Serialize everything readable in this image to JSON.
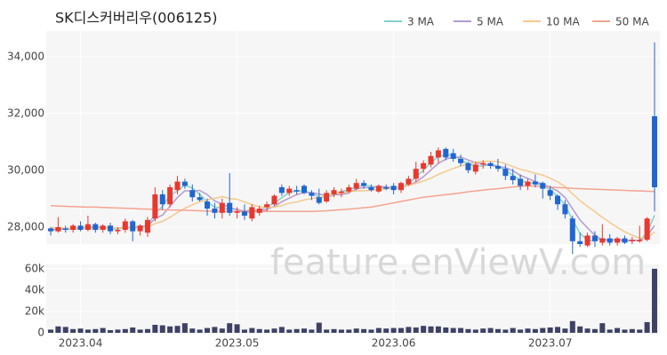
{
  "chart_data": [
    {
      "type": "candlestick",
      "title": "SK디스커버리우(006125)",
      "watermark": "feature.enViewV.com",
      "categories": [
        null,
        null,
        null,
        null,
        "2023.04",
        null,
        null,
        null,
        null,
        null,
        null,
        null,
        null,
        null,
        null,
        null,
        null,
        null,
        null,
        null,
        null,
        null,
        null,
        null,
        null,
        "2023.05",
        null,
        null,
        null,
        null,
        null,
        null,
        null,
        null,
        null,
        null,
        null,
        null,
        null,
        null,
        null,
        null,
        null,
        null,
        null,
        null,
        "2023.06",
        null,
        null,
        null,
        null,
        null,
        null,
        null,
        null,
        null,
        null,
        null,
        null,
        null,
        null,
        null,
        null,
        null,
        null,
        null,
        null,
        "2023.07",
        null,
        null,
        null,
        null,
        null,
        null,
        null,
        null,
        null,
        null,
        null,
        null,
        null,
        null
      ],
      "open": [
        27950,
        27850,
        27950,
        27900,
        28050,
        27900,
        28100,
        27900,
        28050,
        27850,
        27900,
        28200,
        27850,
        27800,
        28300,
        29150,
        28800,
        29300,
        29600,
        29300,
        29050,
        28900,
        28650,
        28500,
        28850,
        28500,
        28550,
        28300,
        28500,
        28700,
        28800,
        29400,
        29200,
        29300,
        29450,
        29200,
        29050,
        28900,
        29150,
        29200,
        29250,
        29350,
        29550,
        29400,
        29250,
        29400,
        29450,
        29300,
        29500,
        29700,
        30050,
        30200,
        30450,
        30750,
        30600,
        30400,
        30250,
        29950,
        30200,
        30250,
        30150,
        30050,
        29800,
        29700,
        29450,
        29600,
        29550,
        29300,
        29100,
        28800,
        28300,
        27500,
        27350,
        27700,
        27450,
        27600,
        27450,
        27600,
        27500,
        27500,
        27550,
        31900
      ],
      "high": [
        28000,
        28350,
        28050,
        28100,
        28200,
        28400,
        28150,
        28100,
        28150,
        28000,
        28300,
        28250,
        28100,
        28350,
        29400,
        29300,
        29500,
        29800,
        29700,
        29500,
        29200,
        29000,
        28850,
        29000,
        29900,
        28700,
        28800,
        28800,
        28750,
        28900,
        29150,
        29500,
        29450,
        29450,
        29500,
        29300,
        29350,
        29300,
        29400,
        29350,
        29500,
        29700,
        29650,
        29500,
        29500,
        29500,
        29550,
        29600,
        29800,
        30300,
        30350,
        30650,
        30800,
        30800,
        30750,
        30550,
        30300,
        30300,
        30350,
        30300,
        30400,
        30200,
        30050,
        29850,
        29700,
        29850,
        29600,
        29450,
        29150,
        28950,
        28400,
        27800,
        27800,
        27850,
        28100,
        27750,
        27650,
        27700,
        27650,
        28050,
        28350,
        34500
      ],
      "low": [
        27700,
        27800,
        27800,
        27800,
        27850,
        27850,
        27800,
        27800,
        27750,
        27750,
        27800,
        27500,
        27700,
        27650,
        28200,
        28600,
        28700,
        29150,
        29350,
        28900,
        28900,
        28400,
        28300,
        28300,
        28400,
        28300,
        28250,
        28200,
        28400,
        28550,
        28750,
        29100,
        29100,
        29150,
        29150,
        28950,
        28800,
        28850,
        29050,
        29050,
        29200,
        29300,
        29350,
        29250,
        29200,
        29300,
        29150,
        29200,
        29450,
        29600,
        29900,
        30100,
        30250,
        30350,
        30300,
        30150,
        29900,
        29850,
        30050,
        30050,
        29950,
        29650,
        29500,
        29300,
        29300,
        29400,
        29000,
        28950,
        28600,
        28300,
        27050,
        27300,
        27300,
        27300,
        27350,
        27350,
        27350,
        27400,
        27400,
        27450,
        27500,
        28550
      ],
      "close": [
        27850,
        28000,
        27900,
        28050,
        27900,
        28100,
        27900,
        28050,
        27850,
        27900,
        28200,
        27850,
        28050,
        28250,
        29150,
        28800,
        29400,
        29600,
        29450,
        29050,
        28950,
        28650,
        28500,
        28850,
        28500,
        28550,
        28400,
        28700,
        28650,
        28800,
        29100,
        29200,
        29350,
        29250,
        29200,
        29100,
        28850,
        29200,
        29300,
        29250,
        29400,
        29550,
        29450,
        29300,
        29450,
        29350,
        29300,
        29550,
        29700,
        30050,
        30250,
        30500,
        30700,
        30450,
        30400,
        30250,
        30000,
        30200,
        30250,
        30150,
        30050,
        29800,
        29650,
        29450,
        29600,
        29500,
        29350,
        29100,
        28800,
        28450,
        27500,
        27400,
        27700,
        27500,
        27600,
        27450,
        27600,
        27450,
        27550,
        27550,
        28300,
        29400
      ],
      "up_color": "#e8382f",
      "down_color": "#2166d1",
      "series": [
        {
          "name": "3 MA",
          "color": "#7fd3cf",
          "values": [
            27900,
            27920,
            27920,
            27980,
            27950,
            28020,
            27970,
            28020,
            27930,
            27930,
            27980,
            27980,
            28030,
            28050,
            28480,
            28730,
            29120,
            29270,
            29480,
            29370,
            29150,
            28880,
            28700,
            28670,
            28620,
            28630,
            28480,
            28550,
            28580,
            28720,
            28850,
            29030,
            29220,
            29270,
            29270,
            29180,
            29050,
            29050,
            29120,
            29250,
            29320,
            29400,
            29470,
            29430,
            29400,
            29370,
            29370,
            29400,
            29520,
            29770,
            30000,
            30270,
            30480,
            30550,
            30520,
            30370,
            30220,
            30150,
            30150,
            30200,
            30150,
            30000,
            29830,
            29630,
            29570,
            29520,
            29480,
            29320,
            29080,
            28780,
            28250,
            27780,
            27530,
            27530,
            27600,
            27520,
            27550,
            27500,
            27530,
            27520,
            27800,
            28420
          ]
        },
        {
          "name": "5 MA",
          "color": "#b49cd0",
          "values": [
            27900,
            27920,
            27930,
            27950,
            27940,
            27990,
            27990,
            27990,
            27960,
            27960,
            28000,
            27970,
            27990,
            28030,
            28300,
            28420,
            28730,
            29040,
            29280,
            29260,
            29290,
            29140,
            28920,
            28800,
            28690,
            28610,
            28560,
            28600,
            28560,
            28620,
            28730,
            28890,
            29020,
            29140,
            29220,
            29220,
            29150,
            29120,
            29140,
            29140,
            29200,
            29340,
            29390,
            29390,
            29430,
            29410,
            29370,
            29390,
            29470,
            29590,
            29770,
            30010,
            30240,
            30390,
            30460,
            30460,
            30360,
            30260,
            30220,
            30170,
            30130,
            30090,
            29980,
            29820,
            29710,
            29600,
            29510,
            29400,
            29270,
            29040,
            28640,
            28250,
            27970,
            27710,
            27540,
            27530,
            27570,
            27520,
            27530,
            27520,
            27690,
            28050
          ]
        },
        {
          "name": "10 MA",
          "color": "#f3c98b",
          "values": [
            27980,
            27970,
            27960,
            27950,
            27950,
            27960,
            27960,
            27970,
            27960,
            27960,
            27980,
            27970,
            27980,
            28000,
            28120,
            28200,
            28340,
            28510,
            28660,
            28780,
            28890,
            28960,
            29010,
            29070,
            29000,
            28980,
            28880,
            28790,
            28710,
            28690,
            28700,
            28750,
            28840,
            28880,
            28950,
            29000,
            29040,
            29090,
            29160,
            29210,
            29240,
            29270,
            29280,
            29290,
            29320,
            29340,
            29380,
            29420,
            29460,
            29540,
            29620,
            29720,
            29850,
            29960,
            30060,
            30150,
            30220,
            30280,
            30310,
            30320,
            30300,
            30230,
            30130,
            30030,
            29970,
            29890,
            29830,
            29720,
            29590,
            29420,
            29170,
            28930,
            28730,
            28540,
            28340,
            28160,
            27990,
            27830,
            27710,
            27610,
            27620,
            27820
          ]
        },
        {
          "name": "50 MA",
          "color": "#f4a38f",
          "values": [
            28750,
            28740,
            28730,
            28720,
            28710,
            28700,
            28700,
            28690,
            28680,
            28670,
            28660,
            28650,
            28640,
            28630,
            28620,
            28610,
            28600,
            28600,
            28590,
            28580,
            28570,
            28560,
            28560,
            28550,
            28550,
            28550,
            28550,
            28550,
            28550,
            28550,
            28550,
            28550,
            28550,
            28550,
            28550,
            28550,
            28560,
            28570,
            28590,
            28610,
            28630,
            28650,
            28680,
            28700,
            28750,
            28800,
            28850,
            28900,
            28950,
            29000,
            29050,
            29080,
            29110,
            29140,
            29170,
            29200,
            29240,
            29270,
            29300,
            29330,
            29350,
            29380,
            29410,
            29430,
            29450,
            29440,
            29420,
            29410,
            29390,
            29380,
            29360,
            29350,
            29340,
            29330,
            29320,
            29310,
            29300,
            29290,
            29280,
            29270,
            29260,
            29250
          ]
        }
      ],
      "ylim": [
        27400,
        34900
      ],
      "yticks": [
        {
          "value": 28000,
          "label": "28,000"
        },
        {
          "value": 30000,
          "label": "30,000"
        },
        {
          "value": 32000,
          "label": "32,000"
        },
        {
          "value": 34000,
          "label": "34,000"
        }
      ],
      "grid": true,
      "legend": "top-right"
    },
    {
      "type": "bar",
      "color": "#3d4266",
      "values": [
        3000,
        6000,
        5500,
        3500,
        4000,
        3000,
        3500,
        4500,
        2500,
        3000,
        3500,
        5000,
        3000,
        3500,
        7500,
        7000,
        6000,
        6500,
        9000,
        4000,
        3000,
        4500,
        5500,
        4000,
        9000,
        8000,
        3000,
        4500,
        3500,
        3000,
        4000,
        5500,
        3000,
        3500,
        4000,
        3000,
        9500,
        3000,
        3500,
        3000,
        3000,
        4000,
        3500,
        3000,
        4500,
        4000,
        4500,
        4500,
        5500,
        5000,
        6500,
        6000,
        6000,
        5000,
        4500,
        4500,
        3500,
        3000,
        4000,
        4500,
        3500,
        3000,
        4500,
        3000,
        4000,
        3500,
        4500,
        5000,
        5500,
        4000,
        11000,
        6000,
        4000,
        3500,
        9000,
        3000,
        4500,
        3000,
        3500,
        3000,
        10000,
        60000
      ],
      "ylim": [
        0,
        64000
      ],
      "yticks": [
        0,
        {
          "value": 20000,
          "label": "20k"
        },
        {
          "value": 40000,
          "label": "40k"
        },
        {
          "value": 60000,
          "label": "60k"
        }
      ],
      "grid": true
    }
  ]
}
